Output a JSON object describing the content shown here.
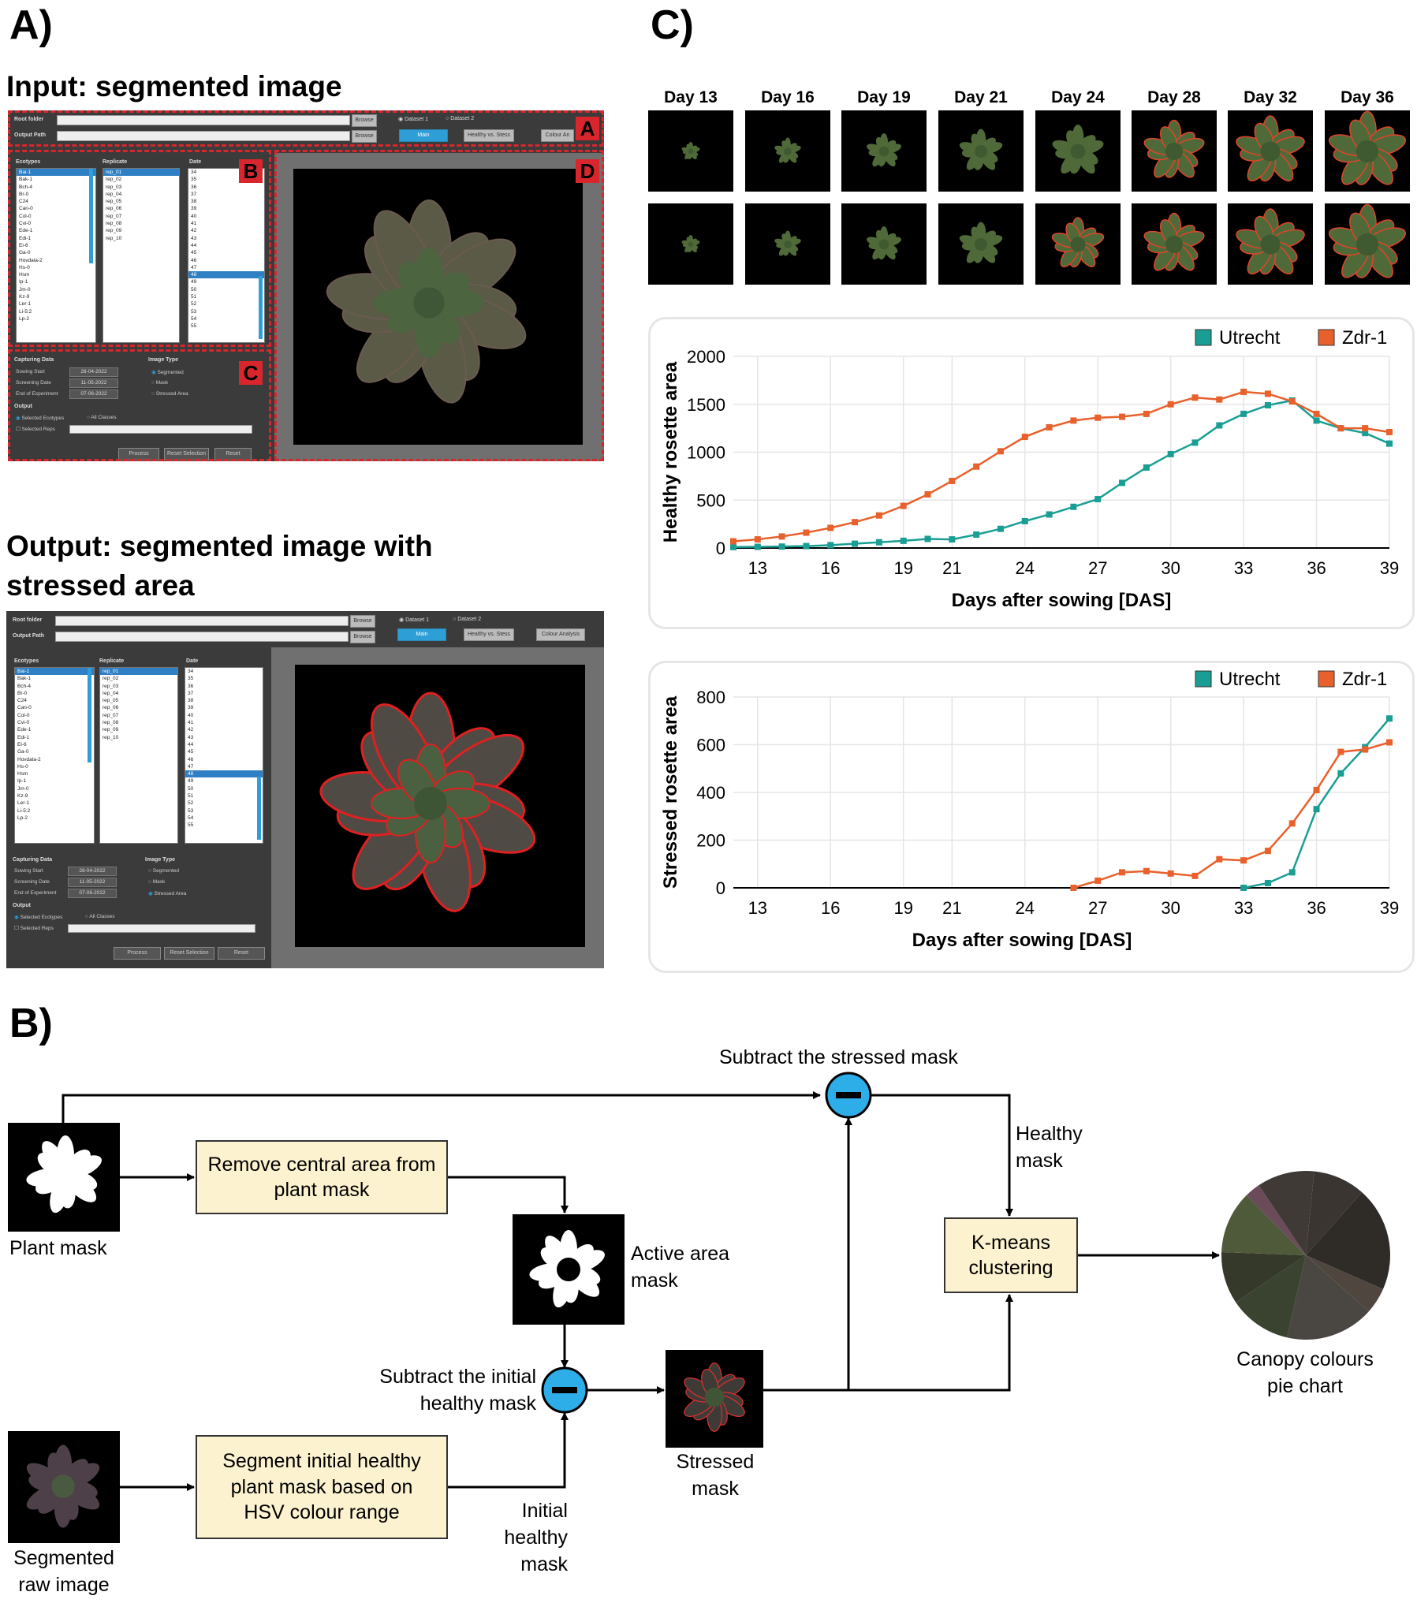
{
  "panels": {
    "a": "A)",
    "b": "B)",
    "c": "C)"
  },
  "panel_a": {
    "input_heading": "Input: segmented image",
    "output_heading": "Output: segmented image with stressed area",
    "gui": {
      "root_folder": "Root folder",
      "output_path": "Output Path",
      "browse": "Browse",
      "dataset1": "Dataset 1",
      "dataset2": "Dataset 2",
      "main_tab": "Main",
      "healthy_tab": "Healthy vs. Stess",
      "colour_tab": "Colour Analysis",
      "colour_tab_short": "Colour An",
      "col_ecotypes": "Ecotypes",
      "col_replicate": "Replicate",
      "col_date": "Date",
      "ecotypes": [
        "Bai-1",
        "Bak-1",
        "Bch-4",
        "Br-0",
        "C24",
        "Can-0",
        "Col-0",
        "Cvi-0",
        "Ede-1",
        "Edi-1",
        "Ei-6",
        "Ga-0",
        "Hovdala-2",
        "Hs-0",
        "Hsm",
        "Ip-1",
        "Jm-0",
        "Kz-9",
        "Ler-1",
        "Li-5:2",
        "Lp-2"
      ],
      "replicates": [
        "rep_01",
        "rep_02",
        "rep_03",
        "rep_04",
        "rep_05",
        "rep_06",
        "rep_07",
        "rep_08",
        "rep_09",
        "rep_10"
      ],
      "dates": [
        "34",
        "35",
        "36",
        "37",
        "38",
        "39",
        "40",
        "41",
        "42",
        "43",
        "44",
        "45",
        "46",
        "47",
        "48",
        "49",
        "50",
        "51",
        "52",
        "53",
        "54",
        "55"
      ],
      "capturing_data": "Capturing Data",
      "sowing_start": "Sowing Start",
      "screening_date": "Screening Date",
      "end_of_experiment": "End of Experiment",
      "sowing_start_val": "28-04-2022",
      "screening_date_val": "11-05-2022",
      "end_of_experiment_val": "07-06-2022",
      "image_type": "Image Type",
      "segmented": "Segmented",
      "mask": "Mask",
      "stressed_area": "Stressed Area",
      "output": "Output",
      "selected_ecotypes": "Selected Ecotypes",
      "all_classes": "All Classes",
      "selected_reps": "Selected Reps",
      "process": "Process",
      "reset_selection": "Reset Selection",
      "reset": "Reset",
      "region_tags": [
        "A",
        "B",
        "C",
        "D"
      ]
    }
  },
  "panel_c": {
    "days": [
      "Day 13",
      "Day 16",
      "Day 19",
      "Day 21",
      "Day 24",
      "Day 28",
      "Day 32",
      "Day 36"
    ],
    "colors": {
      "utrecht": "#1a9e94",
      "zdr": "#e8602c"
    }
  },
  "chart_data": [
    {
      "type": "line",
      "ylabel": "Healthy rosette area",
      "xlabel": "Days after sowing [DAS]",
      "xticks": [
        13,
        16,
        19,
        21,
        24,
        27,
        30,
        33,
        36,
        39
      ],
      "yticks": [
        0,
        500,
        1000,
        1500,
        2000
      ],
      "ylim": [
        0,
        2000
      ],
      "legend": "top-right",
      "series": [
        {
          "name": "Utrecht",
          "x": [
            12,
            13,
            14,
            15,
            16,
            17,
            18,
            19,
            20,
            21,
            22,
            23,
            24,
            25,
            26,
            27,
            28,
            29,
            30,
            31,
            32,
            33,
            34,
            35,
            36,
            37,
            38,
            39
          ],
          "values": [
            10,
            12,
            15,
            20,
            30,
            45,
            60,
            75,
            95,
            90,
            140,
            200,
            280,
            350,
            430,
            510,
            680,
            840,
            980,
            1100,
            1280,
            1400,
            1490,
            1540,
            1330,
            1250,
            1200,
            1090
          ]
        },
        {
          "name": "Zdr-1",
          "x": [
            12,
            13,
            14,
            15,
            16,
            17,
            18,
            19,
            20,
            21,
            22,
            23,
            24,
            25,
            26,
            27,
            28,
            29,
            30,
            31,
            32,
            33,
            34,
            35,
            36,
            37,
            38,
            39
          ],
          "values": [
            70,
            90,
            120,
            160,
            210,
            270,
            340,
            440,
            560,
            700,
            850,
            1010,
            1160,
            1260,
            1330,
            1360,
            1370,
            1400,
            1500,
            1570,
            1550,
            1630,
            1610,
            1530,
            1400,
            1250,
            1250,
            1210
          ]
        }
      ]
    },
    {
      "type": "line",
      "ylabel": "Stressed  rosette area",
      "xlabel": "Days after sowing [DAS]",
      "xticks": [
        13,
        16,
        19,
        21,
        24,
        27,
        30,
        33,
        36,
        39
      ],
      "yticks": [
        0,
        200,
        400,
        600,
        800
      ],
      "ylim": [
        0,
        800
      ],
      "legend": "top-right",
      "series": [
        {
          "name": "Utrecht",
          "x": [
            33,
            34,
            35,
            36,
            37,
            38,
            39
          ],
          "values": [
            0,
            20,
            65,
            330,
            480,
            590,
            710
          ]
        },
        {
          "name": "Zdr-1",
          "x": [
            26,
            27,
            28,
            29,
            30,
            31,
            32,
            33,
            34,
            35,
            36,
            37,
            38,
            39
          ],
          "values": [
            0,
            30,
            65,
            70,
            60,
            50,
            120,
            115,
            155,
            270,
            410,
            570,
            580,
            610
          ]
        }
      ]
    }
  ],
  "panel_b": {
    "subtract_stressed": "Subtract the stressed mask",
    "plant_mask": "Plant mask",
    "remove_central": "Remove central area from plant mask",
    "active_area_mask": "Active area mask",
    "subtract_initial": "Subtract the initial healthy mask",
    "stressed_mask": "Stressed mask",
    "healthy_mask": "Healthy mask",
    "kmeans": "K-means clustering",
    "pie_label": "Canopy colours pie chart",
    "segment_box": "Segment initial healthy plant mask based on HSV colour range",
    "segmented_raw": "Segmented raw image",
    "initial_healthy_mask": "Initial healthy mask",
    "pie_colors": [
      "#3a3530",
      "#2f2c27",
      "#4f4640",
      "#4a4742",
      "#3a4330",
      "#34392a",
      "#4f5a3a",
      "#6b4a5a",
      "#3f3a36"
    ]
  }
}
